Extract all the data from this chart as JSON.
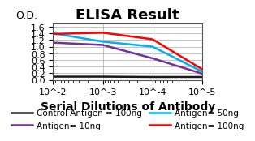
{
  "title": "ELISA Result",
  "ylabel": "O.D.",
  "xlabel": "Serial Dilutions of Antibody",
  "x_values": [
    0.01,
    0.001,
    0.0001,
    1e-05
  ],
  "control_antigen_100ng": {
    "label": "Control Antigen = 100ng",
    "color": "#1a1a1a",
    "y": [
      0.1,
      0.1,
      0.09,
      0.09
    ]
  },
  "antigen_10ng": {
    "label": "Antigen= 10ng",
    "color": "#7030a0",
    "y": [
      1.12,
      1.05,
      0.65,
      0.19
    ]
  },
  "antigen_50ng": {
    "label": "Antigen= 50ng",
    "color": "#00b0f0",
    "y": [
      1.4,
      1.15,
      1.0,
      0.25
    ]
  },
  "antigen_100ng": {
    "label": "Antigen= 100ng",
    "color": "#ff0000",
    "y": [
      1.38,
      1.42,
      1.22,
      0.32
    ]
  },
  "ylim": [
    0,
    1.7
  ],
  "yticks": [
    0,
    0.2,
    0.4,
    0.6,
    0.8,
    1.0,
    1.2,
    1.4,
    1.6
  ],
  "background_color": "#ffffff",
  "title_fontsize": 13,
  "label_fontsize": 9,
  "tick_fontsize": 8,
  "legend_fontsize": 7.5,
  "linewidth": 1.8
}
